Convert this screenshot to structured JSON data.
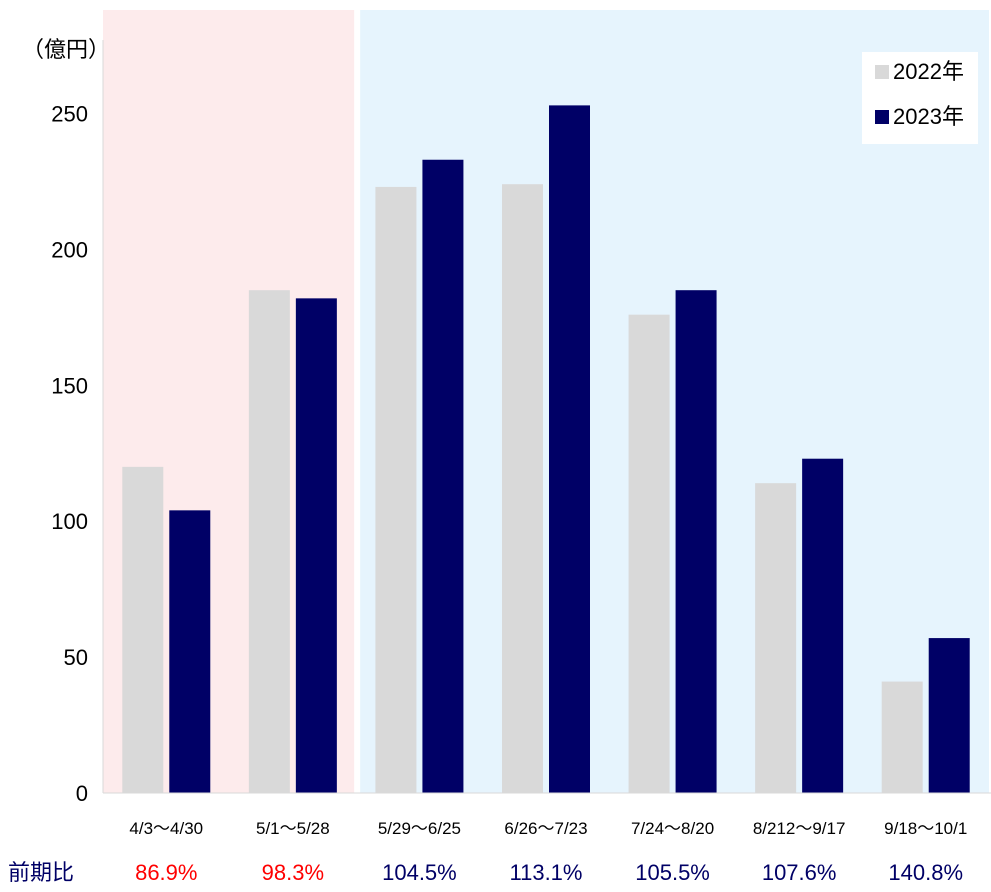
{
  "chart_data": {
    "type": "bar",
    "unit_label": "（億円）",
    "categories": [
      "4/3〜4/30",
      "5/1〜5/28",
      "5/29〜6/25",
      "6/26〜7/23",
      "7/24〜8/20",
      "8/212〜9/17",
      "9/18〜10/1"
    ],
    "series": [
      {
        "name": "2022年",
        "color": "#d9d9d9",
        "values": [
          120,
          185,
          223,
          224,
          176,
          114,
          41
        ]
      },
      {
        "name": "2023年",
        "color": "#000066",
        "values": [
          104,
          182,
          233,
          253,
          185,
          123,
          57
        ]
      }
    ],
    "ylim": [
      0,
      280
    ],
    "yticks": [
      0,
      50,
      100,
      150,
      200,
      250
    ],
    "ratio_label": "前期比",
    "ratio_label_color": "#000066",
    "ratios": [
      "86.9%",
      "98.3%",
      "104.5%",
      "113.1%",
      "105.5%",
      "107.6%",
      "140.8%"
    ],
    "ratio_colors": [
      "#ff0000",
      "#ff0000",
      "#000066",
      "#000066",
      "#000066",
      "#000066",
      "#000066"
    ],
    "bands": [
      {
        "from_category": 0,
        "to_category": 1,
        "color": "#fdebec"
      },
      {
        "from_category": 2,
        "to_category": 6,
        "color": "#e6f4fd"
      }
    ],
    "legend_placement": "top-right",
    "grid": false
  }
}
